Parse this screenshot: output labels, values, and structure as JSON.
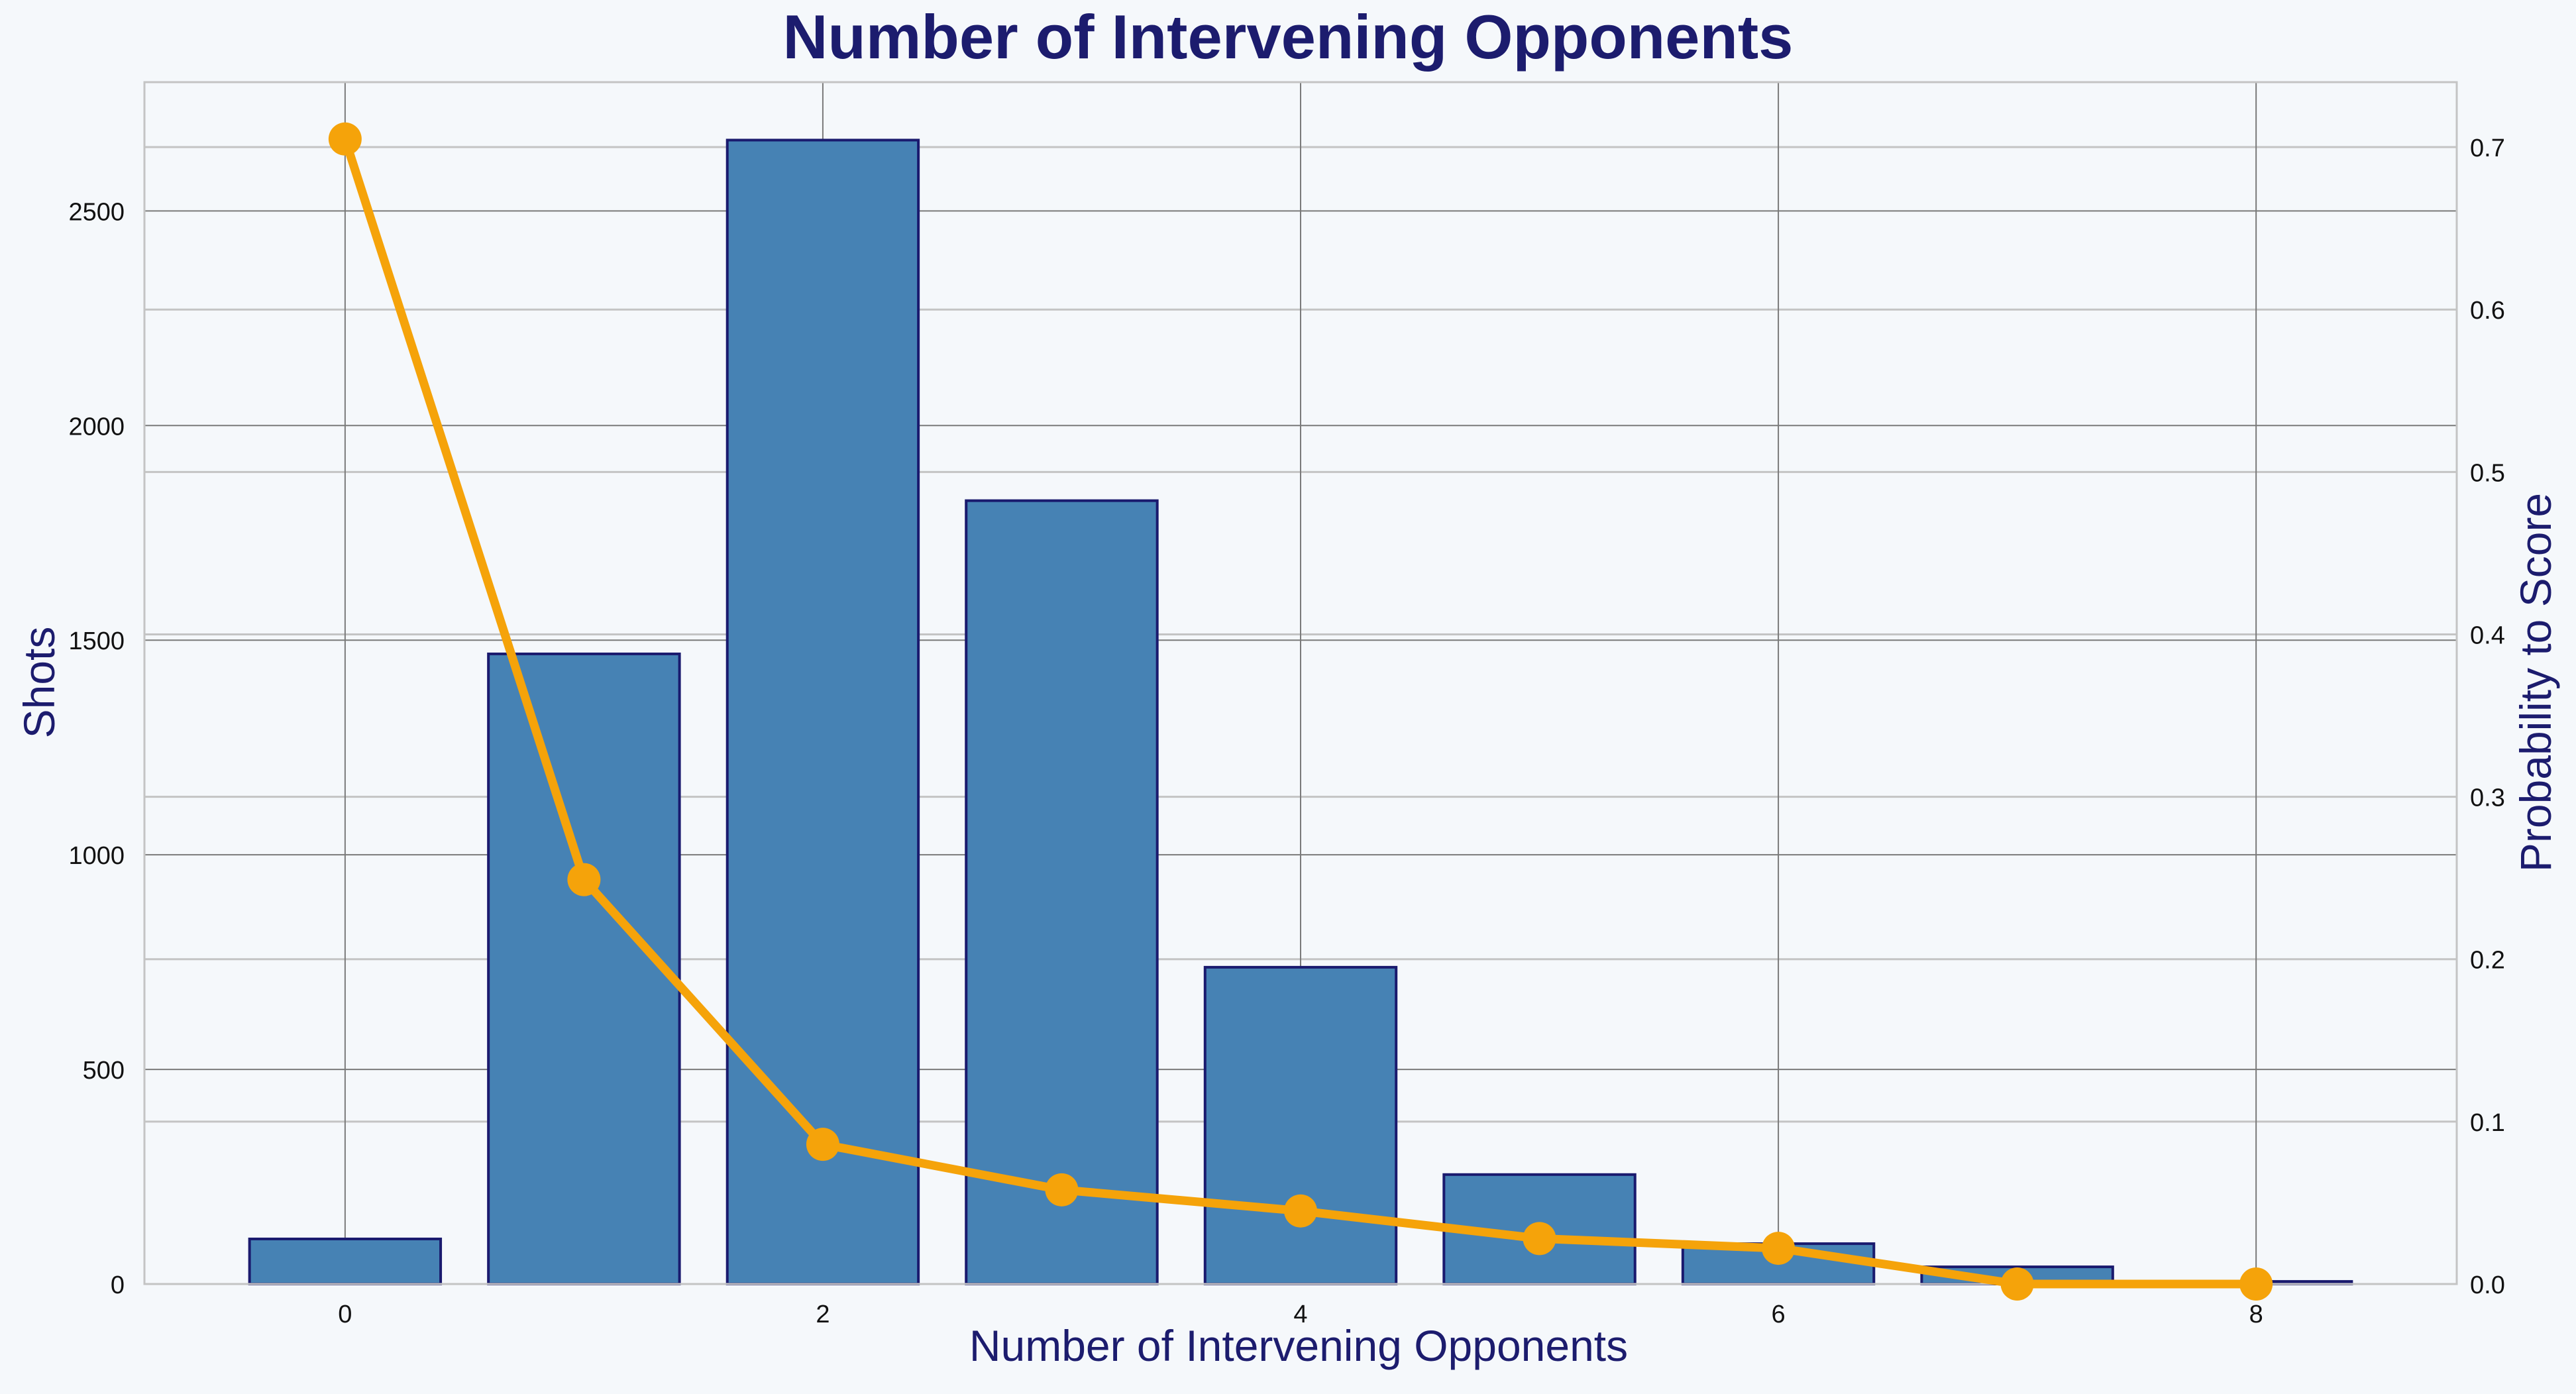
{
  "chart_data": {
    "type": "bar",
    "title": "Number of Intervening Opponents",
    "xlabel": "Number of Intervening Opponents",
    "ylabel": "Shots",
    "y2label": "Probability to Score",
    "categories": [
      0,
      1,
      2,
      3,
      4,
      5,
      6,
      7,
      8
    ],
    "series": [
      {
        "name": "Shots",
        "type": "bar",
        "axis": "left",
        "values": [
          105,
          1468,
          2665,
          1825,
          738,
          255,
          94,
          40,
          6
        ],
        "color": "#4682b4",
        "edgecolor": "#1a1a6e"
      },
      {
        "name": "Probability to Score",
        "type": "line",
        "axis": "right",
        "values": [
          0.705,
          0.249,
          0.086,
          0.058,
          0.045,
          0.028,
          0.022,
          0.0,
          0.0
        ],
        "color": "#f5a30a"
      }
    ],
    "xlim": [
      -0.84,
      8.84
    ],
    "ylim": [
      0,
      2800
    ],
    "y2lim": [
      0,
      0.74
    ],
    "xticks": [
      0,
      2,
      4,
      6,
      8
    ],
    "yticks": [
      0,
      500,
      1000,
      1500,
      2000,
      2500
    ],
    "y2ticks": [
      0.0,
      0.1,
      0.2,
      0.3,
      0.4,
      0.5,
      0.6,
      0.7
    ],
    "y2ticklabels": [
      "0.0",
      "0.1",
      "0.2",
      "0.3",
      "0.4",
      "0.5",
      "0.6",
      "0.7"
    ],
    "grid": true,
    "colors": {
      "background": "#f5f8fb",
      "title": "#1c1c6e",
      "label": "#1c1c6e",
      "tick": "#111111",
      "grid": "#7a7a7a",
      "grid2": "#c4c4c4",
      "frame": "#c4c4c4"
    }
  }
}
